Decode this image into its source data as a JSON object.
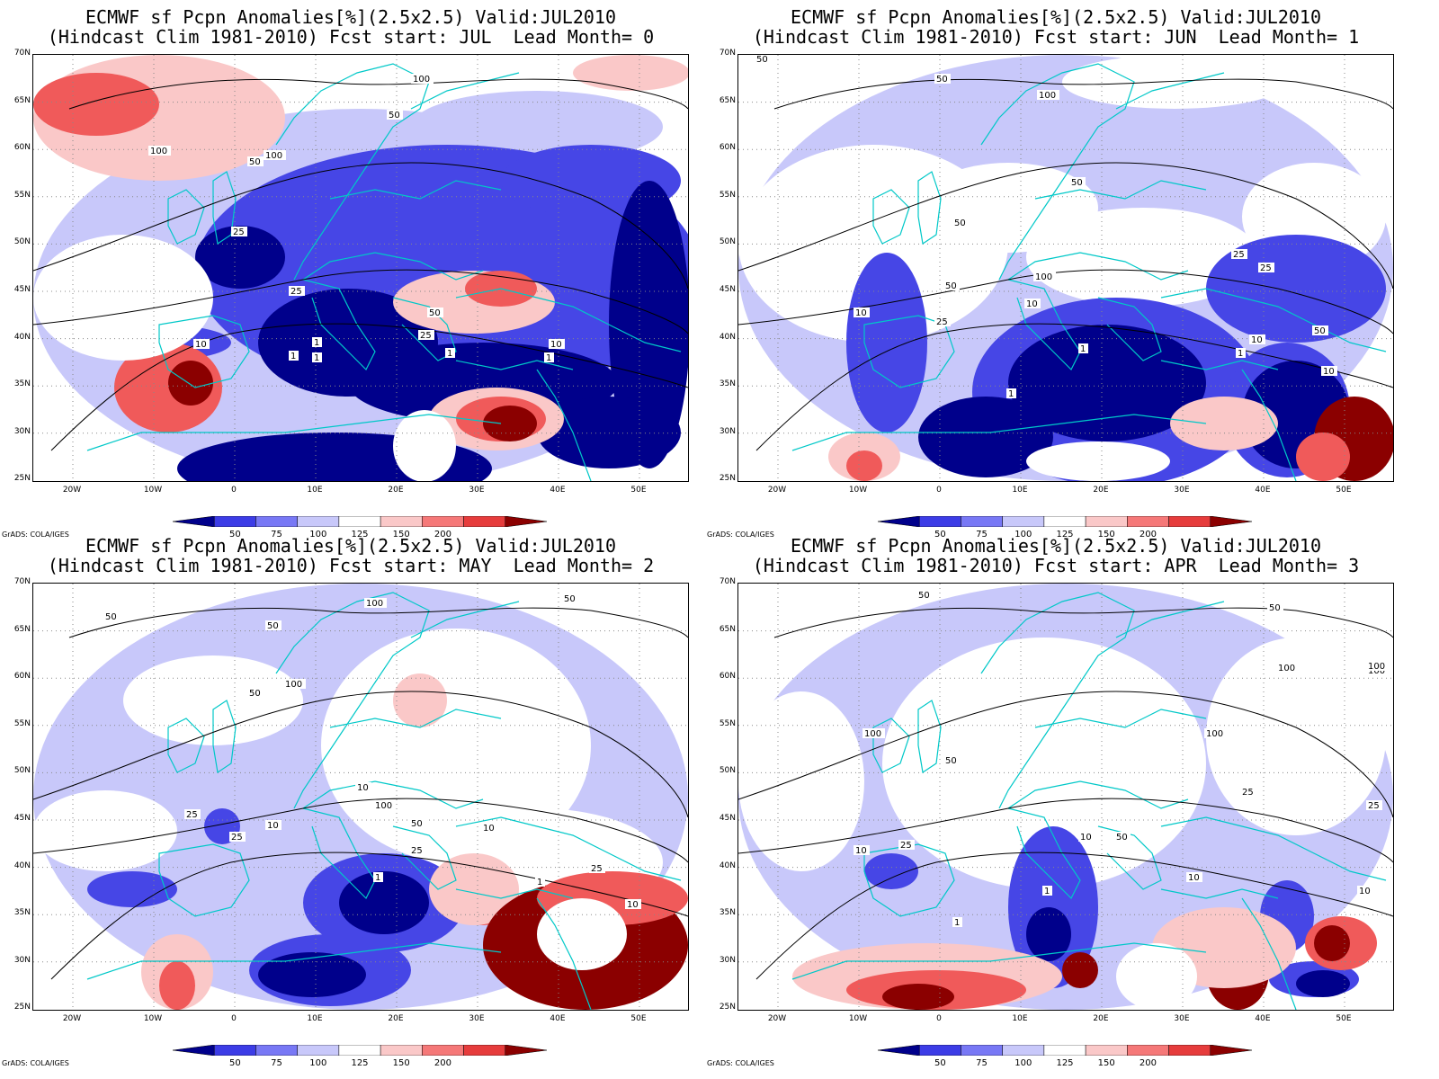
{
  "credit": "GrADS: COLA/IGES",
  "title_line1": "ECMWF sf Pcpn Anomalies[%](2.5x2.5) Valid:JUL2010",
  "lat_ticks": [
    "70N",
    "65N",
    "60N",
    "55N",
    "50N",
    "45N",
    "40N",
    "35N",
    "30N",
    "25N"
  ],
  "lon_ticks": [
    "20W",
    "10W",
    "0",
    "10E",
    "20E",
    "30E",
    "40E",
    "50E"
  ],
  "colorbar": {
    "labels": [
      "50",
      "75",
      "100",
      "125",
      "150",
      "200"
    ],
    "colors": [
      "#00008b",
      "#3c3ce6",
      "#7878f5",
      "#c8c8fa",
      "#ffffff",
      "#fac8c8",
      "#f57878",
      "#e63c3c",
      "#8b0000"
    ]
  },
  "colors": {
    "deep_blue": "#00008b",
    "blue": "#4646e6",
    "light_blue": "#c8c8fa",
    "white": "#ffffff",
    "light_red": "#fac8c8",
    "red": "#f05a5a",
    "dark_red": "#8b0000",
    "coast": "#00c8c8",
    "contour": "#000000"
  },
  "panels": [
    {
      "title_line2": "(Hindcast Clim 1981-2010) Fcst start: JUL  Lead Month= 0",
      "contour_labels": [
        "100",
        "100",
        "100",
        "50",
        "50",
        "50",
        "25",
        "25",
        "25",
        "10",
        "10",
        "1",
        "1",
        "1",
        "1",
        "1"
      ]
    },
    {
      "title_line2": "(Hindcast Clim 1981-2010) Fcst start: JUN  Lead Month= 1",
      "contour_labels": [
        "50",
        "50",
        "50",
        "50",
        "50",
        "100",
        "100",
        "25",
        "25",
        "25",
        "10",
        "10",
        "10",
        "10",
        "1",
        "1",
        "1",
        "50"
      ]
    },
    {
      "title_line2": "(Hindcast Clim 1981-2010) Fcst start: MAY  Lead Month= 2",
      "contour_labels": [
        "50",
        "50",
        "50",
        "50",
        "100",
        "100",
        "100",
        "25",
        "25",
        "25",
        "10",
        "10",
        "10",
        "10",
        "1",
        "1",
        "50",
        "25"
      ]
    },
    {
      "title_line2": "(Hindcast Clim 1981-2010) Fcst start: APR  Lead Month= 3",
      "contour_labels": [
        "50",
        "50",
        "50",
        "100",
        "100",
        "100",
        "100",
        "25",
        "25",
        "25",
        "10",
        "10",
        "10",
        "10",
        "1",
        "1",
        "50",
        "100"
      ]
    }
  ]
}
